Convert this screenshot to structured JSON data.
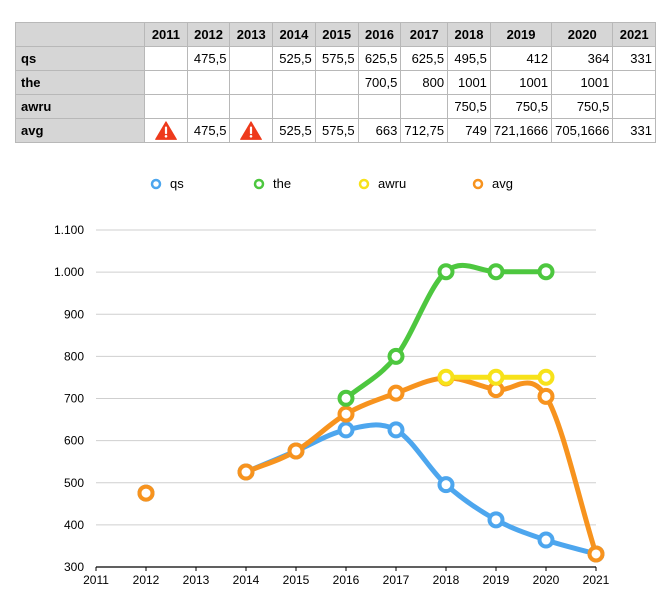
{
  "table": {
    "years": [
      "2011",
      "2012",
      "2013",
      "2014",
      "2015",
      "2016",
      "2017",
      "2018",
      "2019",
      "2020",
      "2021"
    ],
    "rows": [
      {
        "name": "qs",
        "cells": [
          "",
          "475,5",
          "",
          "525,5",
          "575,5",
          "625,5",
          "625,5",
          "495,5",
          "412",
          "364",
          "331"
        ]
      },
      {
        "name": "the",
        "cells": [
          "",
          "",
          "",
          "",
          "",
          "700,5",
          "800",
          "1001",
          "1001",
          "1001",
          ""
        ]
      },
      {
        "name": "awru",
        "cells": [
          "",
          "",
          "",
          "",
          "",
          "",
          "",
          "750,5",
          "750,5",
          "750,5",
          ""
        ]
      },
      {
        "name": "avg",
        "cells": [
          "!",
          "475,5",
          "!",
          "525,5",
          "575,5",
          "663",
          "712,75",
          "749",
          "721,1666",
          "705,1666",
          "331"
        ]
      }
    ]
  },
  "chart_data": {
    "type": "line",
    "x": [
      2011,
      2012,
      2013,
      2014,
      2015,
      2016,
      2017,
      2018,
      2019,
      2020,
      2021
    ],
    "x_tick_labels": [
      "2011",
      "2012",
      "2013",
      "2014",
      "2015",
      "2016",
      "2017",
      "2018",
      "2019",
      "2020",
      "2021"
    ],
    "y_tick_values": [
      300,
      400,
      500,
      600,
      700,
      800,
      900,
      1000,
      1100
    ],
    "y_tick_labels": [
      "300",
      "400",
      "500",
      "600",
      "700",
      "800",
      "900",
      "1.000",
      "1.100"
    ],
    "ylim": [
      300,
      1100
    ],
    "grid": "horizontal",
    "legend": "top-center",
    "series": [
      {
        "name": "qs",
        "color": "#4da6ee",
        "values": [
          null,
          475.5,
          null,
          525.5,
          575.5,
          625.5,
          625.5,
          495.5,
          412,
          364,
          331
        ]
      },
      {
        "name": "the",
        "color": "#4dc73f",
        "values": [
          null,
          null,
          null,
          null,
          null,
          700.5,
          800,
          1001,
          1001,
          1001,
          null
        ]
      },
      {
        "name": "awru",
        "color": "#f7e21a",
        "values": [
          null,
          null,
          null,
          null,
          null,
          null,
          null,
          750.5,
          750.5,
          750.5,
          null
        ]
      },
      {
        "name": "avg",
        "color": "#f7931e",
        "values": [
          null,
          475.5,
          null,
          525.5,
          575.5,
          663,
          712.75,
          749,
          721.1666,
          705.1666,
          331
        ]
      }
    ]
  }
}
